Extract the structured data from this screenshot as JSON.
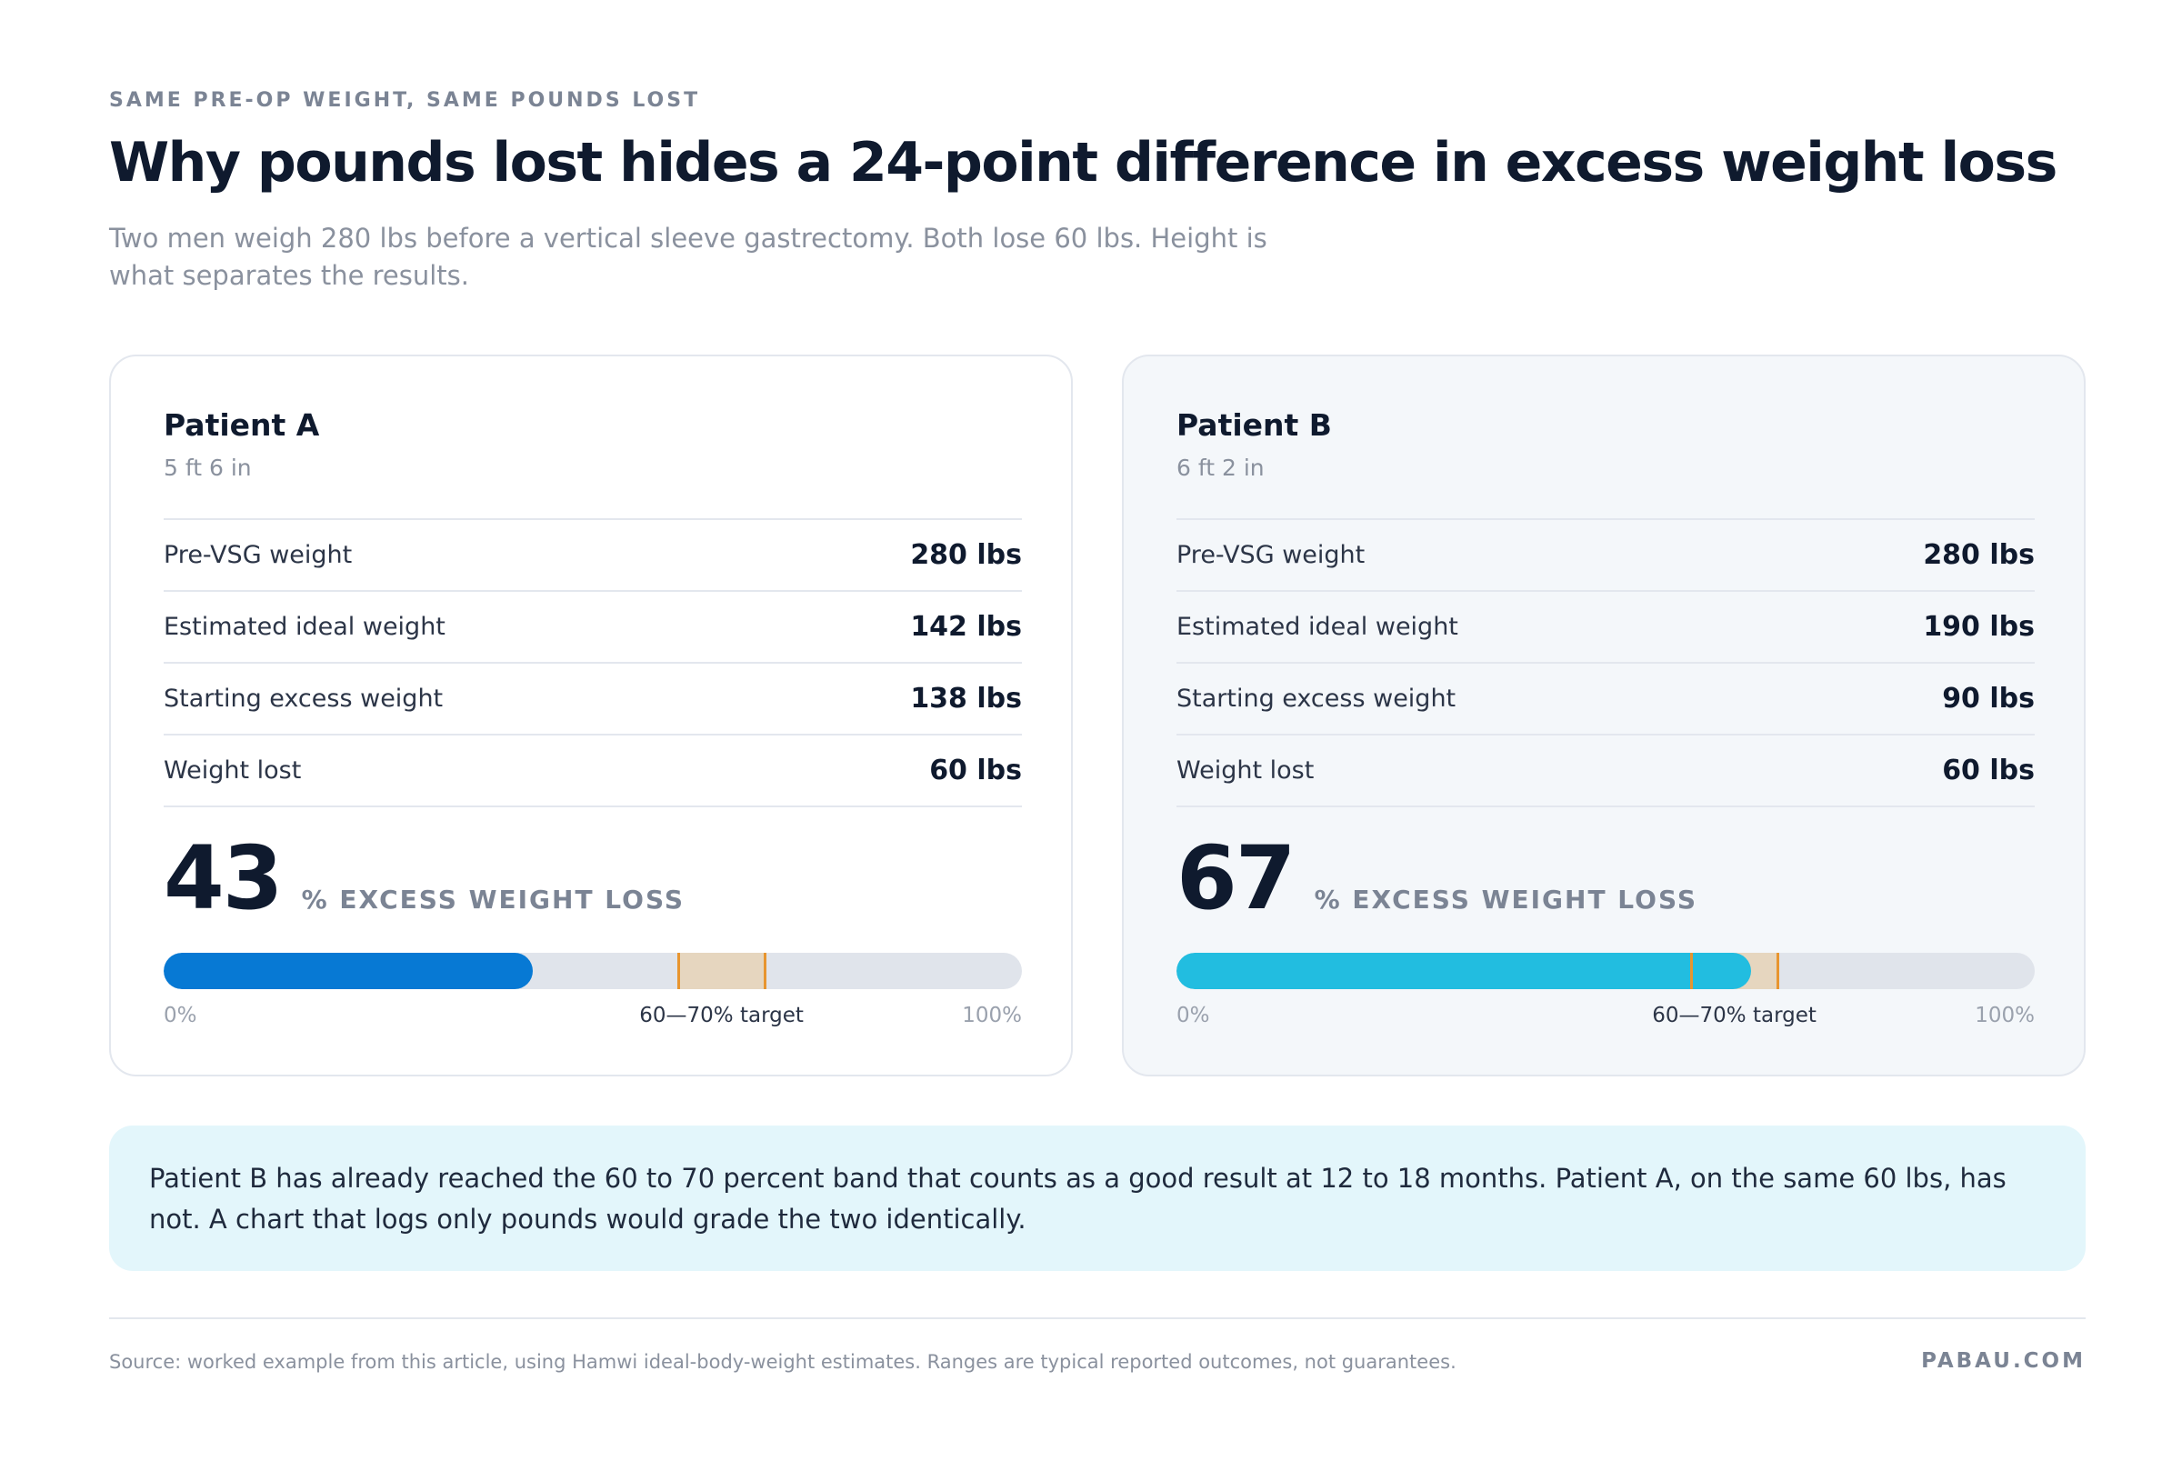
{
  "header": {
    "eyebrow": "SAME PRE-OP WEIGHT, SAME POUNDS LOST",
    "title": "Why pounds lost hides a 24-point difference in excess weight loss",
    "subtitle": "Two men weigh 280 lbs before a vertical sleeve gastrectomy. Both lose 60 lbs. Height is what separates the results."
  },
  "chart_data": {
    "type": "bar",
    "orientation": "horizontal",
    "categories": [
      "Patient A",
      "Patient B"
    ],
    "series": [
      {
        "name": "% EXCESS WEIGHT LOSS",
        "values": [
          43,
          67
        ]
      }
    ],
    "xlim": [
      0,
      100
    ],
    "target_band": [
      60,
      70
    ],
    "target_label": "60—70% target",
    "scale_min_label": "0%",
    "scale_max_label": "100%",
    "colors": {
      "Patient A": "#0779d4",
      "Patient B": "#22bde0",
      "band": "#e6d6bf",
      "band_edge": "#e8952f",
      "track": "#e0e4eb"
    }
  },
  "patients": [
    {
      "name": "Patient A",
      "height": "5 ft 6 in",
      "rows": [
        {
          "label": "Pre-VSG weight",
          "value": "280 lbs"
        },
        {
          "label": "Estimated ideal weight",
          "value": "142 lbs"
        },
        {
          "label": "Starting excess weight",
          "value": "138 lbs"
        },
        {
          "label": "Weight lost",
          "value": "60 lbs"
        }
      ],
      "ewl": "43",
      "ewl_unit": "% EXCESS WEIGHT LOSS",
      "scale": {
        "min": "0%",
        "target": "60—70% target",
        "max": "100%"
      }
    },
    {
      "name": "Patient B",
      "height": "6 ft 2 in",
      "rows": [
        {
          "label": "Pre-VSG weight",
          "value": "280 lbs"
        },
        {
          "label": "Estimated ideal weight",
          "value": "190 lbs"
        },
        {
          "label": "Starting excess weight",
          "value": "90 lbs"
        },
        {
          "label": "Weight lost",
          "value": "60 lbs"
        }
      ],
      "ewl": "67",
      "ewl_unit": "% EXCESS WEIGHT LOSS",
      "scale": {
        "min": "0%",
        "target": "60—70% target",
        "max": "100%"
      }
    }
  ],
  "callout": "Patient B has already reached the 60 to 70 percent band that counts as a good result at 12 to 18 months. Patient A, on the same 60 lbs, has not. A chart that logs only pounds would grade the two identically.",
  "footer": {
    "source": "Source: worked example from this article, using Hamwi ideal-body-weight estimates. Ranges are typical reported outcomes, not guarantees.",
    "brand": "PABAU.COM"
  }
}
